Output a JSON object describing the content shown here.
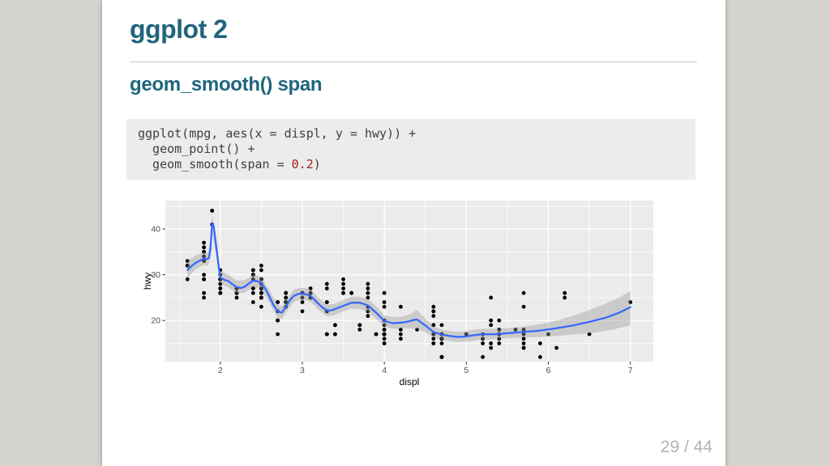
{
  "slide": {
    "title": "ggplot 2",
    "subtitle": "geom_smooth() span",
    "page_number": "29 / 44",
    "accent_color": "#20657d",
    "page_number_color": "#b5b3ae"
  },
  "code": {
    "background": "#ececec",
    "colors": {
      "default": "#3f3f3f",
      "number": "#a51d1d"
    },
    "lines": [
      {
        "segments": [
          {
            "text": "ggplot(mpg, aes(x = displ, y = hwy)) +",
            "color": "default"
          }
        ]
      },
      {
        "segments": [
          {
            "text": "  geom_point() +",
            "color": "default"
          }
        ]
      },
      {
        "segments": [
          {
            "text": "  geom_smooth(span = ",
            "color": "default"
          },
          {
            "text": "0.2",
            "color": "number"
          },
          {
            "text": ")",
            "color": "default"
          }
        ]
      }
    ]
  },
  "chart_data": {
    "type": "scatter",
    "title": "",
    "xlabel": "displ",
    "ylabel": "hwy",
    "xlim": [
      1.33,
      7.28
    ],
    "ylim": [
      11,
      46.2
    ],
    "x_ticks": [
      2,
      3,
      4,
      5,
      6,
      7
    ],
    "y_ticks": [
      20,
      30,
      40
    ],
    "x_minor_ticks": [
      1.5,
      2.5,
      3.5,
      4.5,
      5.5,
      6.5
    ],
    "y_minor_ticks": [
      15,
      25,
      35,
      45
    ],
    "grid": true,
    "legend": false,
    "panel_bg": "#ebebeb",
    "grid_color": "#ffffff",
    "tick_label_color": "#4d4d4d",
    "point_color": "#000000",
    "smooth_color": "#3366ff",
    "ribbon_color": "#999999",
    "points": [
      [
        1.8,
        29
      ],
      [
        1.8,
        29
      ],
      [
        2,
        31
      ],
      [
        2,
        30
      ],
      [
        2.8,
        26
      ],
      [
        2.8,
        26
      ],
      [
        3.1,
        27
      ],
      [
        1.8,
        26
      ],
      [
        1.8,
        25
      ],
      [
        2,
        28
      ],
      [
        2,
        27
      ],
      [
        2.8,
        25
      ],
      [
        2.8,
        25
      ],
      [
        3.1,
        25
      ],
      [
        3.1,
        25
      ],
      [
        2.8,
        24
      ],
      [
        3.1,
        25
      ],
      [
        4.2,
        23
      ],
      [
        5.3,
        20
      ],
      [
        5.3,
        15
      ],
      [
        5.3,
        20
      ],
      [
        5.7,
        17
      ],
      [
        6,
        17
      ],
      [
        5.7,
        26
      ],
      [
        5.7,
        23
      ],
      [
        6.2,
        26
      ],
      [
        6.2,
        25
      ],
      [
        7,
        24
      ],
      [
        5.3,
        14
      ],
      [
        5.3,
        19
      ],
      [
        5.7,
        14
      ],
      [
        6.5,
        17
      ],
      [
        2.4,
        27
      ],
      [
        2.4,
        30
      ],
      [
        3.1,
        26
      ],
      [
        3.5,
        29
      ],
      [
        3.6,
        26
      ],
      [
        2.4,
        24
      ],
      [
        3,
        24
      ],
      [
        3.3,
        22
      ],
      [
        3.3,
        22
      ],
      [
        3.3,
        24
      ],
      [
        3.3,
        24
      ],
      [
        3.3,
        17
      ],
      [
        3.8,
        22
      ],
      [
        3.8,
        21
      ],
      [
        3.8,
        23
      ],
      [
        4,
        23
      ],
      [
        3.7,
        19
      ],
      [
        3.7,
        18
      ],
      [
        3.9,
        17
      ],
      [
        3.9,
        17
      ],
      [
        4.7,
        16
      ],
      [
        4.7,
        16
      ],
      [
        4.7,
        12
      ],
      [
        5.2,
        17
      ],
      [
        5.2,
        15
      ],
      [
        3.9,
        17
      ],
      [
        4.7,
        16
      ],
      [
        4.7,
        12
      ],
      [
        4.7,
        17
      ],
      [
        4.7,
        16
      ],
      [
        5.2,
        16
      ],
      [
        5.9,
        15
      ],
      [
        4.7,
        16
      ],
      [
        4.7,
        12
      ],
      [
        4.7,
        17
      ],
      [
        4.7,
        15
      ],
      [
        4.7,
        17
      ],
      [
        4.7,
        12
      ],
      [
        5.2,
        16
      ],
      [
        5.2,
        12
      ],
      [
        5.7,
        16
      ],
      [
        5.9,
        12
      ],
      [
        4.6,
        17
      ],
      [
        5.4,
        17
      ],
      [
        5.4,
        18
      ],
      [
        4,
        17
      ],
      [
        4,
        16
      ],
      [
        4,
        18
      ],
      [
        4,
        17
      ],
      [
        4.6,
        19
      ],
      [
        5,
        17
      ],
      [
        4.2,
        17
      ],
      [
        4.2,
        16
      ],
      [
        4.6,
        16
      ],
      [
        4.6,
        15
      ],
      [
        4.6,
        17
      ],
      [
        5.4,
        15
      ],
      [
        5.4,
        17
      ],
      [
        3.8,
        26
      ],
      [
        3.8,
        25
      ],
      [
        4,
        26
      ],
      [
        4,
        24
      ],
      [
        4.6,
        21
      ],
      [
        4.6,
        22
      ],
      [
        4.6,
        23
      ],
      [
        4.6,
        22
      ],
      [
        5.4,
        20
      ],
      [
        1.6,
        33
      ],
      [
        1.6,
        32
      ],
      [
        1.6,
        32
      ],
      [
        1.6,
        29
      ],
      [
        1.6,
        32
      ],
      [
        1.8,
        34
      ],
      [
        1.8,
        36
      ],
      [
        1.8,
        36
      ],
      [
        2,
        29
      ],
      [
        2.4,
        26
      ],
      [
        2.4,
        27
      ],
      [
        2.4,
        30
      ],
      [
        2.4,
        31
      ],
      [
        2.5,
        26
      ],
      [
        2.5,
        26
      ],
      [
        3.3,
        28
      ],
      [
        2,
        26
      ],
      [
        2,
        29
      ],
      [
        2,
        28
      ],
      [
        2,
        27
      ],
      [
        2.7,
        24
      ],
      [
        2.7,
        24
      ],
      [
        2.7,
        24
      ],
      [
        3,
        22
      ],
      [
        3.7,
        19
      ],
      [
        4,
        20
      ],
      [
        4.7,
        17
      ],
      [
        4.7,
        12
      ],
      [
        4.7,
        19
      ],
      [
        5.7,
        14
      ],
      [
        6.1,
        14
      ],
      [
        4,
        15
      ],
      [
        4.2,
        18
      ],
      [
        4.4,
        18
      ],
      [
        4.6,
        15
      ],
      [
        5.4,
        17
      ],
      [
        5.4,
        16
      ],
      [
        5.4,
        18
      ],
      [
        4,
        17
      ],
      [
        4,
        19
      ],
      [
        4.6,
        19
      ],
      [
        5,
        17
      ],
      [
        2.4,
        29
      ],
      [
        2.4,
        27
      ],
      [
        2.5,
        31
      ],
      [
        2.5,
        32
      ],
      [
        3.5,
        27
      ],
      [
        3.5,
        26
      ],
      [
        3,
        26
      ],
      [
        3,
        25
      ],
      [
        3.5,
        26
      ],
      [
        3.3,
        17
      ],
      [
        3.3,
        17
      ],
      [
        4,
        20
      ],
      [
        5.6,
        18
      ],
      [
        3.1,
        26
      ],
      [
        3.8,
        26
      ],
      [
        3.8,
        27
      ],
      [
        3.8,
        28
      ],
      [
        5.3,
        25
      ],
      [
        2.5,
        26
      ],
      [
        2.5,
        27
      ],
      [
        2.5,
        25
      ],
      [
        2.5,
        25
      ],
      [
        2.5,
        27
      ],
      [
        2.5,
        26
      ],
      [
        2.2,
        26
      ],
      [
        2.2,
        25
      ],
      [
        2.5,
        26
      ],
      [
        2.5,
        25
      ],
      [
        2.5,
        25
      ],
      [
        2.5,
        26
      ],
      [
        2.5,
        27
      ],
      [
        2.5,
        23
      ],
      [
        2.7,
        20
      ],
      [
        2.7,
        20
      ],
      [
        3.4,
        19
      ],
      [
        3.4,
        17
      ],
      [
        4,
        17
      ],
      [
        4.7,
        16
      ],
      [
        2.2,
        26
      ],
      [
        2.2,
        27
      ],
      [
        2.4,
        30
      ],
      [
        2.4,
        31
      ],
      [
        3,
        26
      ],
      [
        3,
        26
      ],
      [
        3.5,
        28
      ],
      [
        2.2,
        26
      ],
      [
        2.2,
        27
      ],
      [
        2.4,
        31
      ],
      [
        2.4,
        31
      ],
      [
        3,
        26
      ],
      [
        3.3,
        27
      ],
      [
        1.8,
        30
      ],
      [
        1.8,
        33
      ],
      [
        1.8,
        35
      ],
      [
        1.8,
        37
      ],
      [
        1.8,
        35
      ],
      [
        4.7,
        17
      ],
      [
        5.7,
        18
      ],
      [
        2.7,
        20
      ],
      [
        2.7,
        22
      ],
      [
        2.7,
        17
      ],
      [
        3.4,
        19
      ],
      [
        3.4,
        17
      ],
      [
        4,
        18
      ],
      [
        4,
        17
      ],
      [
        4,
        15
      ],
      [
        4,
        17
      ],
      [
        4.7,
        16
      ],
      [
        4.7,
        16
      ],
      [
        4.7,
        17
      ],
      [
        5.7,
        15
      ],
      [
        2,
        29
      ],
      [
        2,
        26
      ],
      [
        2,
        29
      ],
      [
        2,
        29
      ],
      [
        2.8,
        24
      ],
      [
        1.9,
        44
      ],
      [
        2,
        29
      ],
      [
        2,
        26
      ],
      [
        2,
        29
      ],
      [
        2,
        29
      ],
      [
        2.5,
        29
      ],
      [
        2.5,
        29
      ],
      [
        2.8,
        23
      ],
      [
        2.8,
        24
      ],
      [
        1.9,
        44
      ],
      [
        1.9,
        41
      ],
      [
        2,
        29
      ],
      [
        2,
        26
      ],
      [
        2.5,
        28
      ],
      [
        2.5,
        29
      ],
      [
        1.8,
        29
      ],
      [
        1.8,
        29
      ],
      [
        2,
        28
      ],
      [
        2,
        29
      ],
      [
        2.8,
        26
      ],
      [
        2.8,
        26
      ],
      [
        3.6,
        26
      ]
    ],
    "smooth_line": [
      [
        1.6,
        31.0
      ],
      [
        1.65,
        31.9
      ],
      [
        1.7,
        32.6
      ],
      [
        1.75,
        33.1
      ],
      [
        1.8,
        33.5
      ],
      [
        1.83,
        33.4
      ],
      [
        1.86,
        33.6
      ],
      [
        1.88,
        35.5
      ],
      [
        1.9,
        41.3
      ],
      [
        1.92,
        40.6
      ],
      [
        1.95,
        36.2
      ],
      [
        1.98,
        31.8
      ],
      [
        2.0,
        29.4
      ],
      [
        2.05,
        28.9
      ],
      [
        2.1,
        28.6
      ],
      [
        2.15,
        27.9
      ],
      [
        2.2,
        27.3
      ],
      [
        2.25,
        27.1
      ],
      [
        2.3,
        27.4
      ],
      [
        2.35,
        28.1
      ],
      [
        2.4,
        28.7
      ],
      [
        2.45,
        28.6
      ],
      [
        2.5,
        28.2
      ],
      [
        2.55,
        26.9
      ],
      [
        2.6,
        25.2
      ],
      [
        2.65,
        23.3
      ],
      [
        2.7,
        22.0
      ],
      [
        2.75,
        21.7
      ],
      [
        2.8,
        23.0
      ],
      [
        2.85,
        24.5
      ],
      [
        2.9,
        25.4
      ],
      [
        2.95,
        25.8
      ],
      [
        3.0,
        25.9
      ],
      [
        3.05,
        25.7
      ],
      [
        3.1,
        25.4
      ],
      [
        3.15,
        24.5
      ],
      [
        3.2,
        23.6
      ],
      [
        3.25,
        22.8
      ],
      [
        3.3,
        22.2
      ],
      [
        3.35,
        22.2
      ],
      [
        3.4,
        22.5
      ],
      [
        3.5,
        23.2
      ],
      [
        3.6,
        23.9
      ],
      [
        3.7,
        23.9
      ],
      [
        3.8,
        23.3
      ],
      [
        3.9,
        21.7
      ],
      [
        4.0,
        19.9
      ],
      [
        4.1,
        19.4
      ],
      [
        4.2,
        19.5
      ],
      [
        4.3,
        19.8
      ],
      [
        4.35,
        20.1
      ],
      [
        4.4,
        20.2
      ],
      [
        4.5,
        18.9
      ],
      [
        4.6,
        17.5
      ],
      [
        4.7,
        16.9
      ],
      [
        4.8,
        16.6
      ],
      [
        4.9,
        16.4
      ],
      [
        5.0,
        16.5
      ],
      [
        5.1,
        16.8
      ],
      [
        5.2,
        17.0
      ],
      [
        5.35,
        17.0
      ],
      [
        5.5,
        17.2
      ],
      [
        5.7,
        17.5
      ],
      [
        5.9,
        17.8
      ],
      [
        6.1,
        18.3
      ],
      [
        6.3,
        18.9
      ],
      [
        6.5,
        19.7
      ],
      [
        6.7,
        20.6
      ],
      [
        6.85,
        21.6
      ],
      [
        7.0,
        22.9
      ]
    ],
    "ribbon": [
      [
        1.6,
        29.3,
        33.0
      ],
      [
        1.7,
        31.2,
        34.2
      ],
      [
        1.8,
        32.2,
        34.9
      ],
      [
        1.85,
        31.9,
        34.9
      ],
      [
        1.88,
        33.8,
        37.4
      ],
      [
        1.9,
        39.4,
        43.2
      ],
      [
        1.95,
        34.3,
        38.2
      ],
      [
        2.0,
        28.0,
        30.9
      ],
      [
        2.1,
        27.2,
        30.0
      ],
      [
        2.2,
        25.9,
        28.7
      ],
      [
        2.3,
        26.1,
        28.8
      ],
      [
        2.4,
        27.4,
        30.1
      ],
      [
        2.5,
        26.9,
        29.5
      ],
      [
        2.6,
        23.8,
        26.6
      ],
      [
        2.7,
        20.6,
        23.4
      ],
      [
        2.75,
        20.3,
        23.1
      ],
      [
        2.8,
        21.7,
        24.4
      ],
      [
        2.9,
        24.1,
        26.8
      ],
      [
        3.0,
        24.6,
        27.2
      ],
      [
        3.1,
        24.1,
        26.8
      ],
      [
        3.2,
        22.3,
        24.9
      ],
      [
        3.3,
        20.9,
        23.4
      ],
      [
        3.4,
        21.2,
        23.7
      ],
      [
        3.5,
        22.0,
        24.5
      ],
      [
        3.6,
        22.6,
        25.2
      ],
      [
        3.7,
        22.5,
        25.2
      ],
      [
        3.8,
        21.9,
        24.7
      ],
      [
        3.9,
        20.3,
        23.1
      ],
      [
        4.0,
        18.7,
        21.1
      ],
      [
        4.1,
        18.2,
        20.7
      ],
      [
        4.2,
        18.2,
        20.8
      ],
      [
        4.3,
        18.3,
        21.3
      ],
      [
        4.4,
        18.1,
        22.3
      ],
      [
        4.5,
        17.4,
        20.4
      ],
      [
        4.6,
        16.3,
        18.7
      ],
      [
        4.7,
        15.8,
        18.0
      ],
      [
        4.8,
        15.5,
        17.7
      ],
      [
        4.9,
        15.3,
        17.5
      ],
      [
        5.0,
        15.4,
        17.7
      ],
      [
        5.1,
        15.6,
        18.0
      ],
      [
        5.2,
        15.8,
        18.2
      ],
      [
        5.35,
        15.9,
        18.2
      ],
      [
        5.5,
        16.1,
        18.3
      ],
      [
        5.7,
        16.3,
        18.7
      ],
      [
        5.9,
        16.4,
        19.2
      ],
      [
        6.1,
        16.6,
        20.0
      ],
      [
        6.3,
        16.9,
        21.0
      ],
      [
        6.5,
        17.2,
        22.3
      ],
      [
        6.7,
        17.7,
        23.7
      ],
      [
        6.85,
        18.3,
        24.9
      ],
      [
        7.0,
        18.9,
        26.4
      ]
    ]
  }
}
